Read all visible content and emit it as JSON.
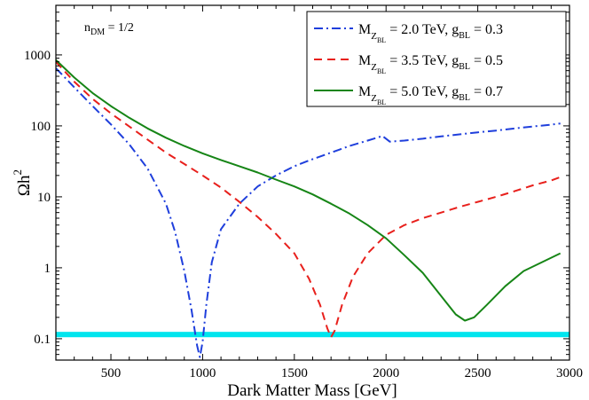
{
  "chart_data": {
    "type": "line",
    "xlabel": "Dark Matter Mass [GeV]",
    "ylabel_main": "Ωh",
    "ylabel_sup": "2",
    "xlim": [
      200,
      3000
    ],
    "ylim": [
      0.05,
      5000
    ],
    "yscale": "log",
    "x_ticks": [
      500,
      1000,
      1500,
      2000,
      2500,
      3000
    ],
    "y_ticks": [
      0.1,
      1,
      10,
      100,
      1000
    ],
    "y_tick_labels": [
      "0.1",
      "1",
      "10",
      "100",
      "1000"
    ],
    "annotation": {
      "main": "n",
      "sub": "DM",
      "rest": " = 1/2"
    },
    "band": {
      "y_low": 0.105,
      "y_high": 0.125,
      "color": "#00e5ee"
    },
    "legend_position": "top-right",
    "series": [
      {
        "name": "MZBL = 2.0 TeV, gBL = 0.3",
        "label": {
          "m": "M",
          "z": "Z",
          "bl": "BL",
          "val": " = 2.0 TeV,  g",
          "gsub": "BL",
          "gval": " = 0.3"
        },
        "color": "#1f3fdc",
        "style": "dashdot",
        "points": [
          [
            200,
            650
          ],
          [
            300,
            350
          ],
          [
            400,
            190
          ],
          [
            500,
            105
          ],
          [
            600,
            55
          ],
          [
            700,
            25
          ],
          [
            800,
            8
          ],
          [
            850,
            3.2
          ],
          [
            900,
            0.9
          ],
          [
            940,
            0.25
          ],
          [
            970,
            0.08
          ],
          [
            985,
            0.055
          ],
          [
            1000,
            0.09
          ],
          [
            1020,
            0.3
          ],
          [
            1050,
            1.2
          ],
          [
            1100,
            3.5
          ],
          [
            1200,
            8
          ],
          [
            1300,
            14
          ],
          [
            1400,
            20
          ],
          [
            1500,
            27
          ],
          [
            1600,
            34
          ],
          [
            1700,
            42
          ],
          [
            1800,
            52
          ],
          [
            1900,
            62
          ],
          [
            1950,
            68
          ],
          [
            1980,
            72
          ],
          [
            2020,
            60
          ],
          [
            2100,
            62
          ],
          [
            2200,
            66
          ],
          [
            2300,
            71
          ],
          [
            2400,
            76
          ],
          [
            2500,
            81
          ],
          [
            2600,
            86
          ],
          [
            2700,
            92
          ],
          [
            2800,
            98
          ],
          [
            2900,
            104
          ],
          [
            2950,
            108
          ]
        ]
      },
      {
        "name": "MZBL = 3.5 TeV, gBL = 0.5",
        "label": {
          "m": "M",
          "z": "Z",
          "bl": "BL",
          "val": " = 3.5 TeV,  g",
          "gsub": "BL",
          "gval": " = 0.5"
        },
        "color": "#e8201c",
        "style": "dashed",
        "points": [
          [
            200,
            800
          ],
          [
            300,
            420
          ],
          [
            400,
            240
          ],
          [
            500,
            150
          ],
          [
            600,
            98
          ],
          [
            700,
            64
          ],
          [
            800,
            42
          ],
          [
            900,
            29
          ],
          [
            1000,
            20
          ],
          [
            1100,
            13.5
          ],
          [
            1200,
            8.5
          ],
          [
            1300,
            5.2
          ],
          [
            1400,
            3
          ],
          [
            1500,
            1.6
          ],
          [
            1580,
            0.7
          ],
          [
            1640,
            0.3
          ],
          [
            1680,
            0.14
          ],
          [
            1700,
            0.105
          ],
          [
            1720,
            0.13
          ],
          [
            1760,
            0.3
          ],
          [
            1820,
            0.75
          ],
          [
            1900,
            1.6
          ],
          [
            2000,
            2.9
          ],
          [
            2100,
            4
          ],
          [
            2200,
            5
          ],
          [
            2300,
            6
          ],
          [
            2400,
            7.2
          ],
          [
            2500,
            8.5
          ],
          [
            2600,
            10
          ],
          [
            2700,
            12
          ],
          [
            2800,
            14.5
          ],
          [
            2900,
            17
          ],
          [
            2950,
            19
          ]
        ]
      },
      {
        "name": "MZBL = 5.0 TeV, gBL = 0.7",
        "label": {
          "m": "M",
          "z": "Z",
          "bl": "BL",
          "val": " = 5.0 TeV,  g",
          "gsub": "BL",
          "gval": " = 0.7"
        },
        "color": "#168516",
        "style": "solid",
        "points": [
          [
            200,
            850
          ],
          [
            300,
            480
          ],
          [
            400,
            290
          ],
          [
            500,
            190
          ],
          [
            600,
            130
          ],
          [
            700,
            92
          ],
          [
            800,
            68
          ],
          [
            900,
            52
          ],
          [
            1000,
            41
          ],
          [
            1100,
            33
          ],
          [
            1200,
            27
          ],
          [
            1300,
            22
          ],
          [
            1400,
            17.5
          ],
          [
            1500,
            14
          ],
          [
            1600,
            10.8
          ],
          [
            1700,
            8
          ],
          [
            1800,
            5.8
          ],
          [
            1900,
            4
          ],
          [
            2000,
            2.6
          ],
          [
            2100,
            1.5
          ],
          [
            2200,
            0.85
          ],
          [
            2300,
            0.4
          ],
          [
            2380,
            0.22
          ],
          [
            2430,
            0.18
          ],
          [
            2480,
            0.2
          ],
          [
            2550,
            0.3
          ],
          [
            2650,
            0.55
          ],
          [
            2750,
            0.9
          ],
          [
            2850,
            1.2
          ],
          [
            2950,
            1.6
          ]
        ]
      }
    ]
  }
}
